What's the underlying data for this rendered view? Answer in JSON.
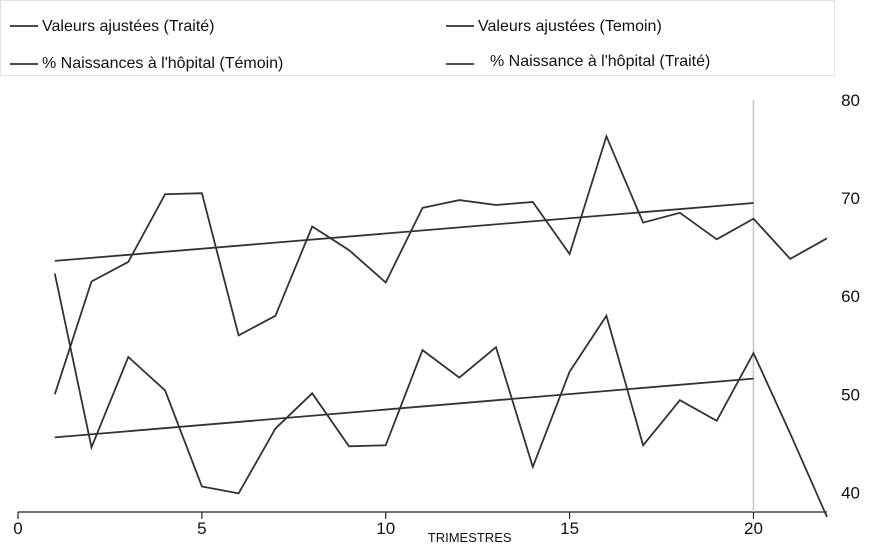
{
  "chart_data": {
    "type": "line",
    "xlabel": "TRIMESTRES",
    "ylabel": "",
    "xlim": [
      0,
      22
    ],
    "ylim": [
      38,
      80
    ],
    "x_ticks": [
      0,
      5,
      10,
      15,
      20
    ],
    "y_ticks": [
      40,
      50,
      60,
      70,
      80
    ],
    "y_axis_side": "right",
    "grid": false,
    "legend_position": "top",
    "reference_line_x": 20,
    "series": [
      {
        "name": "Valeurs ajustées (Traité)",
        "color": "#333333",
        "x": [
          1,
          20
        ],
        "values": [
          63.6,
          69.5
        ]
      },
      {
        "name": "Valeurs ajustées (Temoin)",
        "color": "#333333",
        "x": [
          1,
          20
        ],
        "values": [
          45.6,
          51.6
        ]
      },
      {
        "name": "% Naissances à l'hôpital (Témoin)",
        "color": "#333333",
        "x": [
          1,
          2,
          3,
          4,
          5,
          6,
          7,
          8,
          9,
          10,
          11,
          12,
          13,
          14,
          15,
          16,
          17,
          18,
          19,
          20,
          21,
          22
        ],
        "values": [
          50.0,
          61.5,
          63.5,
          70.4,
          70.5,
          56.0,
          58.0,
          67.1,
          64.7,
          61.4,
          69.0,
          69.8,
          69.3,
          69.6,
          64.3,
          76.3,
          67.5,
          68.5,
          65.8,
          67.9,
          63.8,
          65.9
        ]
      },
      {
        "name": "% Naissance à l'hôpital (Traité)",
        "color": "#333333",
        "x": [
          1,
          2,
          3,
          4,
          5,
          6,
          7,
          8,
          9,
          10,
          11,
          12,
          13,
          14,
          15,
          16,
          17,
          18,
          19,
          20,
          21,
          22
        ],
        "values": [
          62.3,
          44.6,
          53.8,
          50.4,
          40.6,
          39.9,
          46.5,
          50.1,
          44.7,
          44.8,
          54.5,
          51.7,
          54.8,
          42.6,
          52.3,
          58.0,
          44.8,
          49.4,
          47.3,
          54.2,
          46.0,
          37.5
        ]
      }
    ]
  }
}
